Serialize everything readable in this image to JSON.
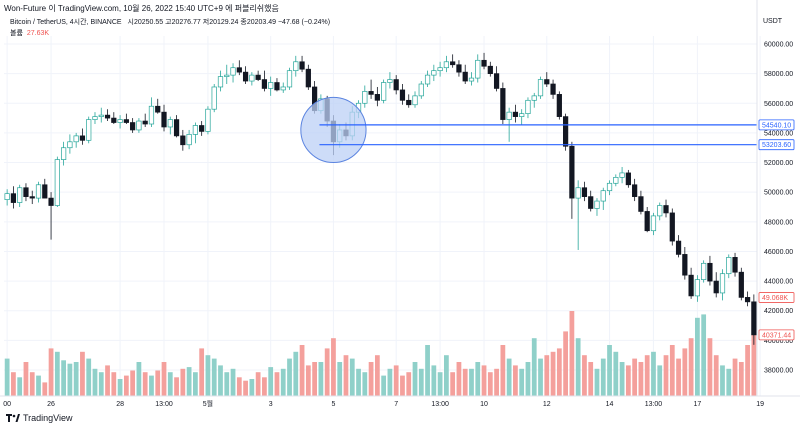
{
  "topline": "Won-Future 이 TradingView.com, 10월 26, 2022 15:40 UTC+9 에 퍼블리쉬했음",
  "header": {
    "symbol": "Bitcoin / TetherUS, 4시간, BINANCE",
    "open_label": "시",
    "open": "20250.55",
    "high_label": "고",
    "high": "20276.77",
    "low_label": "저",
    "low": "20129.24",
    "close_label": "종",
    "close": "20203.49",
    "change": "−47.68 (−0.24%)"
  },
  "volume": {
    "label": "볼륨",
    "value": "27.63K"
  },
  "currency": "USDT",
  "footer": {
    "brand": "TradingView"
  },
  "colors": {
    "up": "#26a69a",
    "down": "#131722",
    "vol_up": "#8fd0c9",
    "vol_down": "#f4a09c",
    "hline": "#2962ff",
    "circle_fill": "#bcd0f5",
    "circle_stroke": "#5b84e0",
    "red_label": "#ef5350"
  },
  "chart_data": {
    "type": "candlestick",
    "y_ticks": [
      "60000.00",
      "58000.00",
      "56000.00",
      "54000.00",
      "52000.00",
      "50000.00",
      "48000.00",
      "46000.00",
      "44000.00",
      "42000.00",
      "40000.00",
      "38000.00"
    ],
    "ylim": [
      36500,
      61500
    ],
    "x_tick_labels": [
      {
        "i": 0,
        "label": "00"
      },
      {
        "i": 7,
        "label": "26"
      },
      {
        "i": 18,
        "label": "28"
      },
      {
        "i": 25,
        "label": "13:00"
      },
      {
        "i": 32,
        "label": "5월"
      },
      {
        "i": 42,
        "label": "3"
      },
      {
        "i": 52,
        "label": "5"
      },
      {
        "i": 62,
        "label": "7"
      },
      {
        "i": 69,
        "label": "13:00"
      },
      {
        "i": 76,
        "label": "10"
      },
      {
        "i": 86,
        "label": "12"
      },
      {
        "i": 96,
        "label": "14"
      },
      {
        "i": 103,
        "label": "13:00"
      },
      {
        "i": 110,
        "label": "17"
      },
      {
        "i": 120,
        "label": "19"
      }
    ],
    "hlines": [
      {
        "price": 54540.1,
        "label": "54540.10"
      },
      {
        "price": 53203.6,
        "label": "53203.60"
      }
    ],
    "price_tags": [
      {
        "price": 42890,
        "label": "49.068K"
      },
      {
        "price": 40371.44,
        "label": "40371.44"
      }
    ],
    "circle_center": {
      "i": 52,
      "price": 54200
    },
    "circle_radius_price": 2200,
    "candles": [
      [
        49500,
        50200,
        49100,
        49900
      ],
      [
        49900,
        50400,
        48900,
        49300
      ],
      [
        49300,
        50500,
        49000,
        50300
      ],
      [
        50300,
        50600,
        49400,
        49700
      ],
      [
        49700,
        50100,
        49200,
        49600
      ],
      [
        49600,
        50700,
        49300,
        50500
      ],
      [
        50500,
        50900,
        49600,
        49600
      ],
      [
        49600,
        50000,
        46800,
        49100
      ],
      [
        49100,
        52400,
        49000,
        52200
      ],
      [
        52200,
        53400,
        51800,
        53000
      ],
      [
        53000,
        53900,
        52600,
        53400
      ],
      [
        53400,
        54000,
        53000,
        53800
      ],
      [
        53800,
        54300,
        53200,
        53500
      ],
      [
        53500,
        55100,
        53300,
        54900
      ],
      [
        54900,
        55400,
        54600,
        55100
      ],
      [
        55100,
        55700,
        54700,
        55200
      ],
      [
        55200,
        55600,
        54800,
        55000
      ],
      [
        55000,
        55400,
        54600,
        54700
      ],
      [
        54700,
        55200,
        54300,
        54900
      ],
      [
        54900,
        55300,
        54600,
        54700
      ],
      [
        54700,
        55000,
        54000,
        54200
      ],
      [
        54200,
        55000,
        54000,
        54800
      ],
      [
        54800,
        55300,
        54400,
        54600
      ],
      [
        54600,
        56400,
        54400,
        55800
      ],
      [
        55800,
        56300,
        55300,
        55400
      ],
      [
        55400,
        55900,
        54100,
        54400
      ],
      [
        54400,
        55100,
        53900,
        54900
      ],
      [
        54900,
        55200,
        53700,
        53800
      ],
      [
        53800,
        54200,
        52800,
        53200
      ],
      [
        53200,
        54200,
        52900,
        53900
      ],
      [
        53900,
        54700,
        53300,
        54500
      ],
      [
        54500,
        54800,
        53800,
        54100
      ],
      [
        54100,
        55800,
        53900,
        55600
      ],
      [
        55600,
        57300,
        55400,
        57100
      ],
      [
        57100,
        58200,
        56800,
        57800
      ],
      [
        57800,
        58600,
        57300,
        57900
      ],
      [
        57900,
        58700,
        57400,
        58400
      ],
      [
        58400,
        58900,
        57900,
        58100
      ],
      [
        58100,
        58500,
        57300,
        57500
      ],
      [
        57500,
        58100,
        57200,
        57900
      ],
      [
        57900,
        58200,
        57500,
        57600
      ],
      [
        57600,
        58200,
        56800,
        57000
      ],
      [
        57000,
        57800,
        56500,
        57400
      ],
      [
        57400,
        57700,
        56800,
        56900
      ],
      [
        56900,
        57400,
        56700,
        57100
      ],
      [
        57100,
        58400,
        56900,
        58200
      ],
      [
        58200,
        59200,
        57800,
        58800
      ],
      [
        58800,
        59200,
        58100,
        58300
      ],
      [
        58300,
        58600,
        56900,
        57100
      ],
      [
        57100,
        57500,
        55300,
        55500
      ],
      [
        55500,
        56600,
        55300,
        56300
      ],
      [
        56300,
        56500,
        54400,
        54800
      ],
      [
        54800,
        55200,
        52500,
        53400
      ],
      [
        53400,
        54600,
        53000,
        54200
      ],
      [
        54200,
        54700,
        53500,
        53800
      ],
      [
        53800,
        55800,
        53500,
        55400
      ],
      [
        55400,
        56200,
        55000,
        56000
      ],
      [
        56000,
        57200,
        55700,
        56800
      ],
      [
        56800,
        57600,
        56300,
        56600
      ],
      [
        56600,
        57100,
        55800,
        56200
      ],
      [
        56200,
        57600,
        56000,
        57400
      ],
      [
        57400,
        58100,
        57000,
        57600
      ],
      [
        57600,
        57900,
        56600,
        56900
      ],
      [
        56900,
        57300,
        55900,
        56200
      ],
      [
        56200,
        56600,
        55700,
        55900
      ],
      [
        55900,
        56800,
        55700,
        56500
      ],
      [
        56500,
        57500,
        56300,
        57300
      ],
      [
        57300,
        58200,
        57100,
        57900
      ],
      [
        57900,
        58600,
        57500,
        58200
      ],
      [
        58200,
        58800,
        57800,
        58400
      ],
      [
        58400,
        59200,
        58100,
        58800
      ],
      [
        58800,
        59300,
        58400,
        58600
      ],
      [
        58600,
        58900,
        57800,
        58100
      ],
      [
        58100,
        58600,
        57300,
        57500
      ],
      [
        57500,
        58100,
        57200,
        57700
      ],
      [
        57700,
        59300,
        57400,
        58900
      ],
      [
        58900,
        59400,
        58300,
        58500
      ],
      [
        58500,
        58800,
        57800,
        58000
      ],
      [
        58000,
        58500,
        56800,
        57000
      ],
      [
        57000,
        57400,
        54600,
        54900
      ],
      [
        54900,
        55700,
        53400,
        55400
      ],
      [
        55400,
        55900,
        54700,
        55100
      ],
      [
        55100,
        55600,
        54500,
        55300
      ],
      [
        55300,
        56400,
        55000,
        56200
      ],
      [
        56200,
        56700,
        55700,
        56500
      ],
      [
        56500,
        57800,
        56300,
        57600
      ],
      [
        57600,
        58100,
        57100,
        57300
      ],
      [
        57300,
        57600,
        56300,
        56600
      ],
      [
        56600,
        56800,
        54900,
        55100
      ],
      [
        55100,
        55300,
        52800,
        53100
      ],
      [
        53100,
        53400,
        48200,
        49600
      ],
      [
        49600,
        50800,
        46100,
        50300
      ],
      [
        50300,
        50700,
        49400,
        49700
      ],
      [
        49700,
        50100,
        48700,
        48900
      ],
      [
        48900,
        49600,
        48400,
        49400
      ],
      [
        49400,
        50300,
        48800,
        50100
      ],
      [
        50100,
        50800,
        49800,
        50600
      ],
      [
        50600,
        51200,
        50400,
        51000
      ],
      [
        51000,
        51700,
        50600,
        51300
      ],
      [
        51300,
        51500,
        50300,
        50500
      ],
      [
        50500,
        50900,
        49400,
        49700
      ],
      [
        49700,
        50100,
        48500,
        48700
      ],
      [
        48700,
        49000,
        47300,
        47400
      ],
      [
        47400,
        48600,
        47100,
        48400
      ],
      [
        48400,
        49300,
        48100,
        49100
      ],
      [
        49100,
        49500,
        48300,
        48600
      ],
      [
        48600,
        48900,
        46400,
        46700
      ],
      [
        46700,
        47100,
        45600,
        45800
      ],
      [
        45800,
        46300,
        44100,
        44400
      ],
      [
        44400,
        44900,
        42800,
        43000
      ],
      [
        43000,
        44400,
        42600,
        44100
      ],
      [
        44100,
        45400,
        43900,
        45200
      ],
      [
        45200,
        45700,
        43700,
        44000
      ],
      [
        44000,
        44600,
        42900,
        43200
      ],
      [
        43200,
        44800,
        42700,
        44500
      ],
      [
        44500,
        45800,
        44200,
        45600
      ],
      [
        45600,
        45900,
        44300,
        44600
      ],
      [
        44600,
        44900,
        42700,
        42900
      ],
      [
        42900,
        43300,
        42300,
        42600
      ],
      [
        42600,
        43100,
        39700,
        40371
      ]
    ],
    "volumes": [
      22,
      14,
      11,
      20,
      14,
      12,
      8,
      28,
      26,
      21,
      19,
      20,
      26,
      22,
      16,
      14,
      18,
      14,
      10,
      12,
      15,
      20,
      14,
      12,
      15,
      20,
      14,
      11,
      16,
      17,
      14,
      28,
      24,
      22,
      18,
      14,
      16,
      11,
      9,
      10,
      14,
      11,
      17,
      14,
      16,
      22,
      26,
      30,
      18,
      20,
      20,
      28,
      34,
      20,
      24,
      22,
      16,
      14,
      20,
      24,
      12,
      16,
      18,
      12,
      14,
      20,
      16,
      30,
      18,
      14,
      24,
      14,
      20,
      16,
      16,
      20,
      18,
      14,
      16,
      30,
      22,
      18,
      16,
      20,
      34,
      22,
      24,
      26,
      28,
      38,
      50,
      34,
      24,
      20,
      16,
      22,
      30,
      26,
      20,
      18,
      22,
      20,
      24,
      26,
      18,
      24,
      30,
      22,
      28,
      34,
      46,
      48,
      34,
      24,
      18,
      16,
      22,
      20,
      30,
      44
    ]
  }
}
